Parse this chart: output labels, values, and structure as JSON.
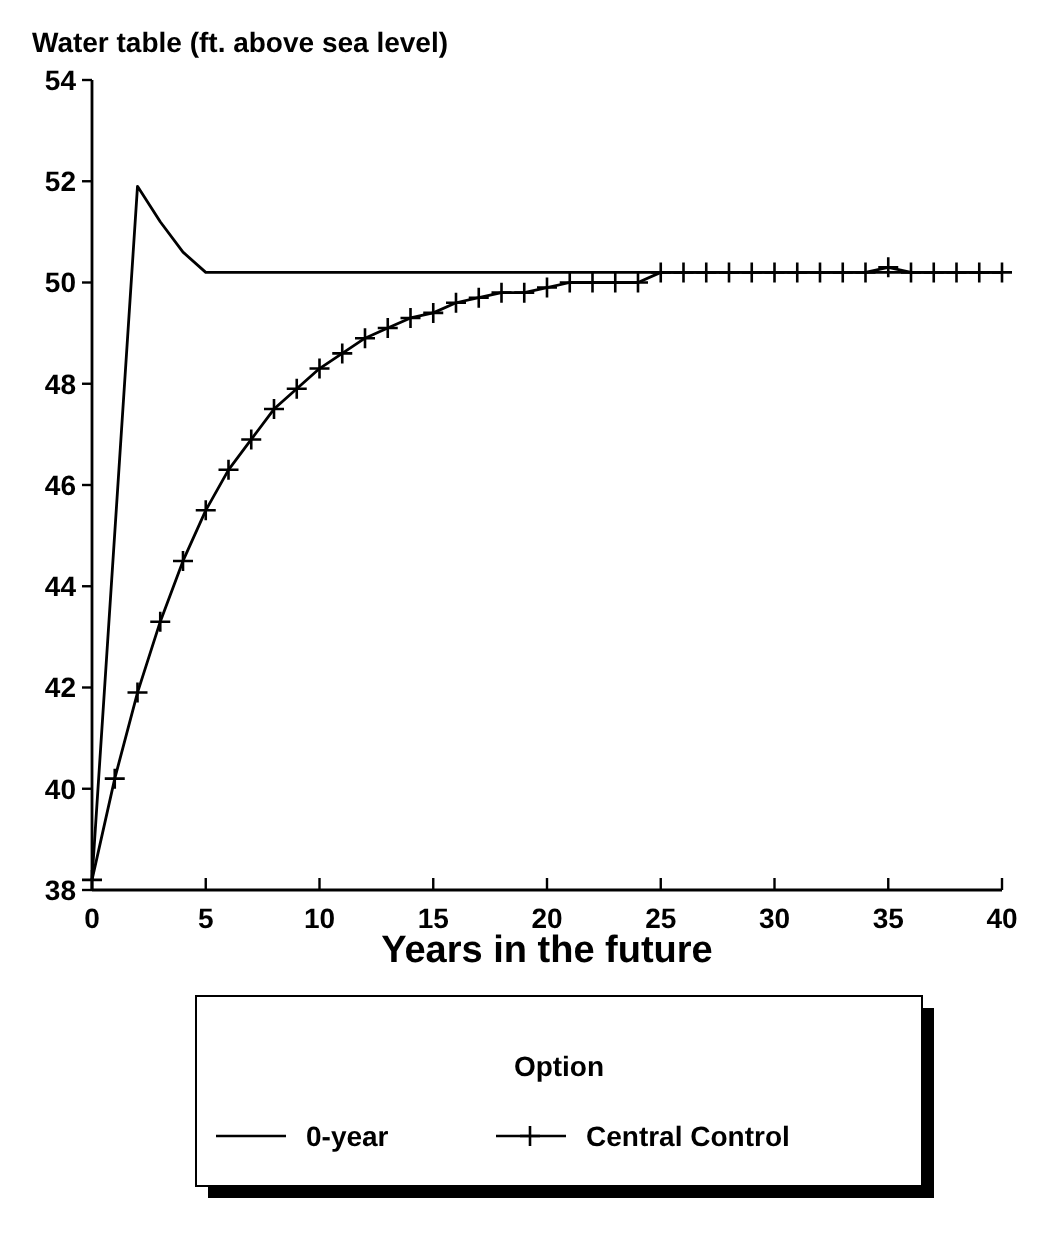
{
  "chart_data": {
    "type": "line",
    "ylabel": "Water table (ft. above sea level)",
    "xlabel": "Years in the future",
    "legend_title": "Option",
    "legend": "bottom",
    "xlim": [
      0,
      40
    ],
    "xticks": [
      0,
      5,
      10,
      15,
      20,
      25,
      30,
      35,
      40
    ],
    "ylim": [
      38,
      54
    ],
    "yticks": [
      38,
      40,
      42,
      44,
      46,
      48,
      50,
      52,
      54
    ],
    "series": [
      {
        "name": "0-year",
        "color": "#000000",
        "marker": "none",
        "x": [
          0,
          2,
          3,
          4,
          5,
          40
        ],
        "values": [
          38.2,
          51.9,
          51.2,
          50.6,
          50.2,
          50.2
        ]
      },
      {
        "name": "Central Control",
        "color": "#000000",
        "marker": "cross",
        "x": [
          0,
          1,
          2,
          3,
          4,
          5,
          6,
          7,
          8,
          9,
          10,
          11,
          12,
          13,
          14,
          15,
          16,
          17,
          18,
          19,
          20,
          21,
          22,
          23,
          24,
          25,
          26,
          27,
          28,
          29,
          30,
          31,
          32,
          33,
          34,
          35,
          36,
          37,
          38,
          39,
          40
        ],
        "values": [
          38.2,
          40.2,
          41.9,
          43.3,
          44.5,
          45.5,
          46.3,
          46.9,
          47.5,
          47.9,
          48.3,
          48.6,
          48.9,
          49.1,
          49.3,
          49.4,
          49.6,
          49.7,
          49.8,
          49.8,
          49.9,
          50.0,
          50.0,
          50.0,
          50.0,
          50.2,
          50.2,
          50.2,
          50.2,
          50.2,
          50.2,
          50.2,
          50.2,
          50.2,
          50.2,
          50.3,
          50.2,
          50.2,
          50.2,
          50.2,
          50.2
        ]
      }
    ]
  }
}
